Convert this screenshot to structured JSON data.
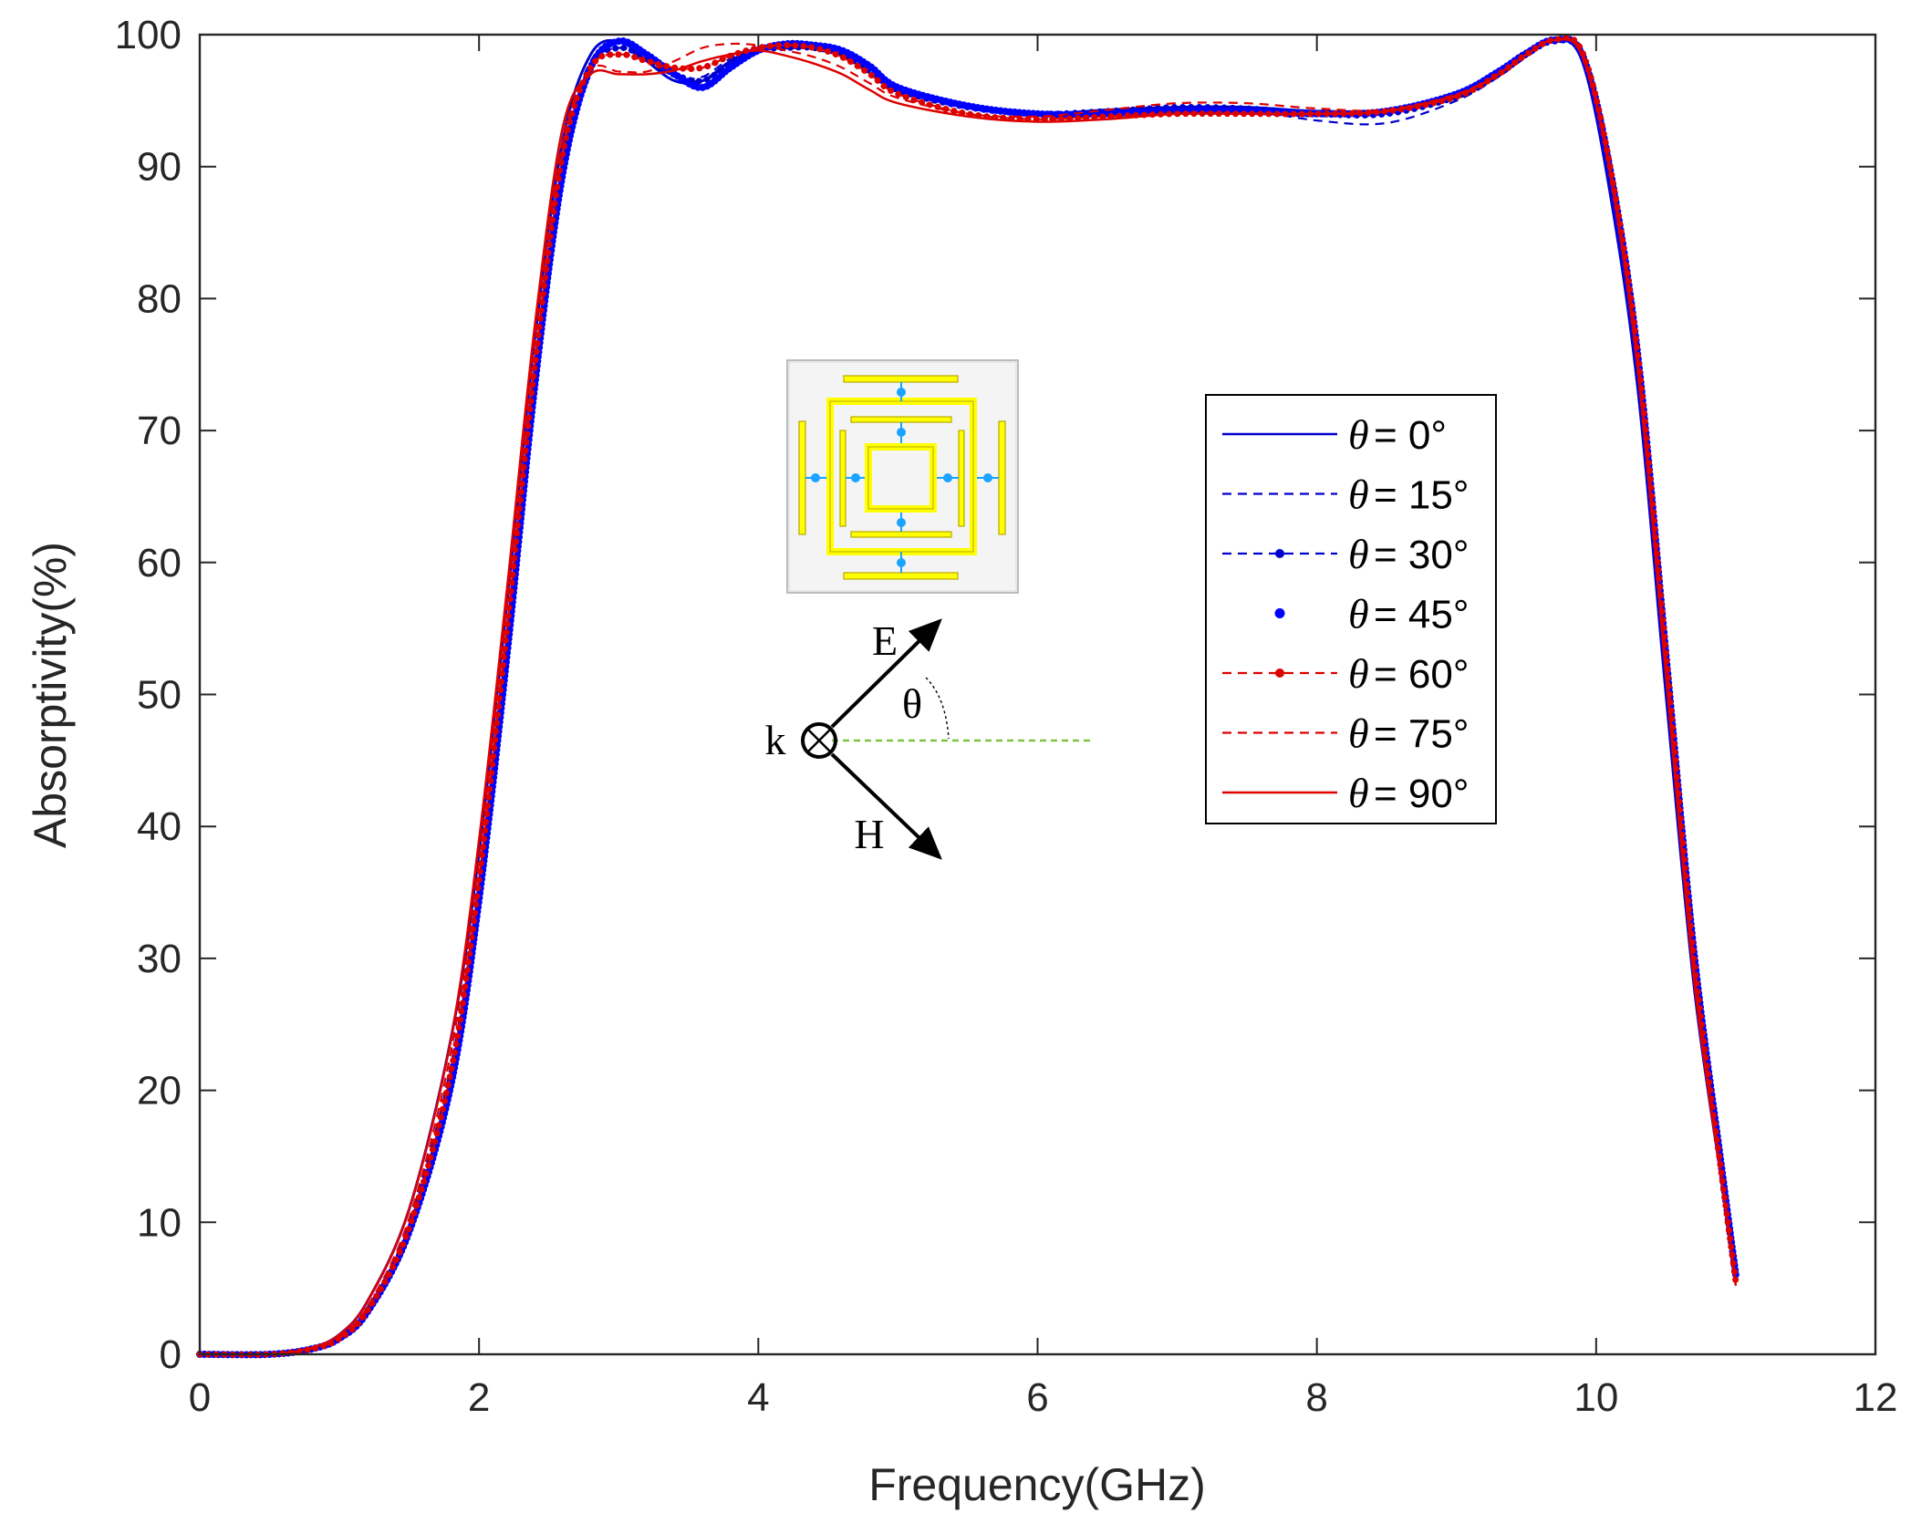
{
  "chart_data": {
    "type": "line",
    "title": "",
    "xlabel": "Frequency(GHz)",
    "ylabel": "Absorptivity(%)",
    "xlim": [
      0,
      12
    ],
    "ylim": [
      0,
      100
    ],
    "xticks": [
      "0",
      "2",
      "4",
      "6",
      "8",
      "10",
      "12"
    ],
    "yticks": [
      "0",
      "10",
      "20",
      "30",
      "40",
      "50",
      "60",
      "70",
      "80",
      "90",
      "100"
    ],
    "grid": false,
    "legend_position": "right-center",
    "legend_theta": "θ",
    "series": [
      {
        "name": "= 0°",
        "color": "#0000cc",
        "style": "solid",
        "x": [
          0,
          0.5,
          0.8,
          1.0,
          1.2,
          1.5,
          1.8,
          2.0,
          2.2,
          2.4,
          2.6,
          2.8,
          3.0,
          3.2,
          3.4,
          3.6,
          3.8,
          4.0,
          4.2,
          4.4,
          4.6,
          4.8,
          5.0,
          5.5,
          6.0,
          6.5,
          7.0,
          7.5,
          8.0,
          8.5,
          9.0,
          9.3,
          9.5,
          9.7,
          9.9,
          10.1,
          10.3,
          10.5,
          10.7,
          10.9,
          11.0
        ],
        "y": [
          0,
          0,
          0.5,
          1.5,
          4,
          11,
          24,
          38,
          57,
          77,
          92,
          98.5,
          99.5,
          98,
          96.5,
          96.5,
          98,
          99,
          99,
          99,
          98.8,
          97.5,
          96,
          94.5,
          94,
          94.3,
          94.5,
          94.5,
          94.2,
          94.3,
          95.5,
          97,
          98.5,
          99.6,
          98,
          88,
          73,
          50,
          28,
          13,
          5.5
        ]
      },
      {
        "name": "= 15°",
        "color": "#0000cc",
        "style": "dashed",
        "x": [
          0,
          0.5,
          0.8,
          1.0,
          1.2,
          1.5,
          1.8,
          2.0,
          2.2,
          2.4,
          2.6,
          2.8,
          3.0,
          3.2,
          3.4,
          3.6,
          3.8,
          4.0,
          4.2,
          4.4,
          4.6,
          4.8,
          5.0,
          5.5,
          6.0,
          6.5,
          7.0,
          7.5,
          8.0,
          8.5,
          9.0,
          9.3,
          9.5,
          9.7,
          9.9,
          10.1,
          10.3,
          10.5,
          10.7,
          10.9,
          11.0
        ],
        "y": [
          0,
          0,
          0.4,
          1.3,
          3.5,
          10,
          22,
          36,
          55,
          75,
          91,
          98,
          99,
          98,
          96.8,
          96.8,
          98.2,
          99,
          99.2,
          99,
          98.5,
          97.2,
          95.8,
          94.4,
          94,
          94.2,
          94.5,
          94.3,
          93.5,
          93.3,
          95,
          96.8,
          98.3,
          99.5,
          98.5,
          90,
          76,
          54,
          31,
          14,
          6
        ]
      },
      {
        "name": "= 30°",
        "color": "#0000cc",
        "style": "dashdot-dots",
        "x": [
          0,
          0.5,
          0.8,
          1.0,
          1.2,
          1.5,
          1.8,
          2.0,
          2.2,
          2.4,
          2.6,
          2.8,
          3.0,
          3.2,
          3.4,
          3.6,
          3.8,
          4.0,
          4.2,
          4.4,
          4.6,
          4.8,
          5.0,
          5.5,
          6.0,
          6.5,
          7.0,
          7.5,
          8.0,
          8.5,
          9.0,
          9.3,
          9.5,
          9.7,
          9.9,
          10.1,
          10.3,
          10.5,
          10.7,
          10.9,
          11.0
        ],
        "y": [
          0,
          0,
          0.4,
          1.2,
          3.3,
          9.5,
          21,
          35,
          54,
          74,
          90,
          97.5,
          99,
          98.2,
          97,
          96.5,
          97.8,
          98.8,
          99,
          99,
          98.5,
          97.2,
          95.8,
          94.5,
          94,
          94.2,
          94.5,
          94.4,
          94,
          94,
          95.3,
          97,
          98.5,
          99.5,
          98.4,
          89.5,
          75,
          52,
          30,
          14,
          6
        ]
      },
      {
        "name": "= 45°",
        "color": "#0000ff",
        "style": "dots",
        "x": [
          0,
          0.5,
          0.8,
          1.0,
          1.2,
          1.5,
          1.8,
          2.0,
          2.2,
          2.4,
          2.6,
          2.8,
          3.0,
          3.2,
          3.4,
          3.6,
          3.8,
          4.0,
          4.2,
          4.4,
          4.6,
          4.8,
          5.0,
          5.5,
          6.0,
          6.5,
          7.0,
          7.5,
          8.0,
          8.5,
          9.0,
          9.3,
          9.5,
          9.7,
          9.9,
          10.1,
          10.3,
          10.5,
          10.7,
          10.9,
          11.0
        ],
        "y": [
          0,
          0,
          0.4,
          1.2,
          3.2,
          9.3,
          20.5,
          34.5,
          53,
          73.5,
          89.5,
          97.5,
          99.5,
          98.5,
          97,
          96,
          97.5,
          98.8,
          99.3,
          99.2,
          98.8,
          97.6,
          96,
          94.6,
          94,
          94,
          94.2,
          94.2,
          94,
          94.2,
          95.5,
          97.2,
          98.6,
          99.6,
          98.5,
          89.8,
          75.5,
          53,
          30.5,
          14,
          6
        ]
      },
      {
        "name": "= 60°",
        "color": "#dd0000",
        "style": "dashdot-dots",
        "x": [
          0,
          0.5,
          0.8,
          1.0,
          1.2,
          1.5,
          1.8,
          2.0,
          2.2,
          2.4,
          2.6,
          2.8,
          3.0,
          3.2,
          3.4,
          3.6,
          3.8,
          4.0,
          4.2,
          4.4,
          4.6,
          4.8,
          5.0,
          5.5,
          6.0,
          6.5,
          7.0,
          7.5,
          8.0,
          8.5,
          9.0,
          9.3,
          9.5,
          9.7,
          9.9,
          10.1,
          10.3,
          10.5,
          10.7,
          10.9,
          11.0
        ],
        "y": [
          0,
          0,
          0.4,
          1.2,
          3.3,
          9.6,
          21.5,
          36,
          55,
          75,
          91,
          97.5,
          98.5,
          98,
          97.5,
          97.5,
          98.4,
          99,
          99.2,
          99,
          98.3,
          97,
          95.5,
          94,
          93.6,
          93.8,
          94,
          94,
          94,
          94.2,
          95.3,
          97,
          98.5,
          99.6,
          98.7,
          90,
          75.5,
          53,
          30,
          13.5,
          5.5
        ]
      },
      {
        "name": "= 75°",
        "color": "#dd0000",
        "style": "dashed",
        "x": [
          0,
          0.5,
          0.8,
          1.0,
          1.2,
          1.5,
          1.8,
          2.0,
          2.2,
          2.4,
          2.6,
          2.8,
          3.0,
          3.2,
          3.4,
          3.6,
          3.8,
          4.0,
          4.2,
          4.4,
          4.6,
          4.8,
          5.0,
          5.5,
          6.0,
          6.5,
          7.0,
          7.5,
          8.0,
          8.5,
          9.0,
          9.3,
          9.5,
          9.7,
          9.9,
          10.1,
          10.3,
          10.5,
          10.7,
          10.9,
          11.0
        ],
        "y": [
          0,
          0,
          0.4,
          1.3,
          3.6,
          10.3,
          23,
          37.5,
          57,
          77,
          92,
          97.3,
          97.2,
          97.2,
          98,
          99,
          99.3,
          99.2,
          98.8,
          98.3,
          97.5,
          96.3,
          95.2,
          94,
          93.8,
          94.3,
          94.8,
          94.8,
          94.4,
          94.3,
          95.5,
          97,
          98.5,
          99.6,
          98.6,
          90,
          75,
          52,
          29,
          13,
          5.5
        ]
      },
      {
        "name": "= 90°",
        "color": "#dd0000",
        "style": "solid",
        "x": [
          0,
          0.5,
          0.8,
          1.0,
          1.2,
          1.5,
          1.8,
          2.0,
          2.2,
          2.4,
          2.6,
          2.8,
          3.0,
          3.2,
          3.4,
          3.6,
          3.8,
          4.0,
          4.2,
          4.4,
          4.6,
          4.8,
          5.0,
          5.5,
          6.0,
          6.5,
          7.0,
          7.5,
          8.0,
          8.5,
          9.0,
          9.3,
          9.5,
          9.7,
          9.9,
          10.1,
          10.3,
          10.5,
          10.7,
          10.9,
          11.0
        ],
        "y": [
          0,
          0,
          0.5,
          1.5,
          4,
          11,
          24,
          39,
          58,
          78,
          93,
          97,
          97,
          97,
          97.3,
          98,
          98.5,
          98.8,
          98.4,
          97.8,
          97,
          95.8,
          94.8,
          93.8,
          93.4,
          93.6,
          94,
          94,
          94,
          94.2,
          95.4,
          97,
          98.5,
          99.6,
          98.4,
          89.5,
          74.5,
          51.5,
          28.5,
          13,
          5.2
        ]
      }
    ],
    "inset": {
      "labels": {
        "E": "E",
        "H": "H",
        "k": "k",
        "theta": "θ"
      }
    }
  }
}
